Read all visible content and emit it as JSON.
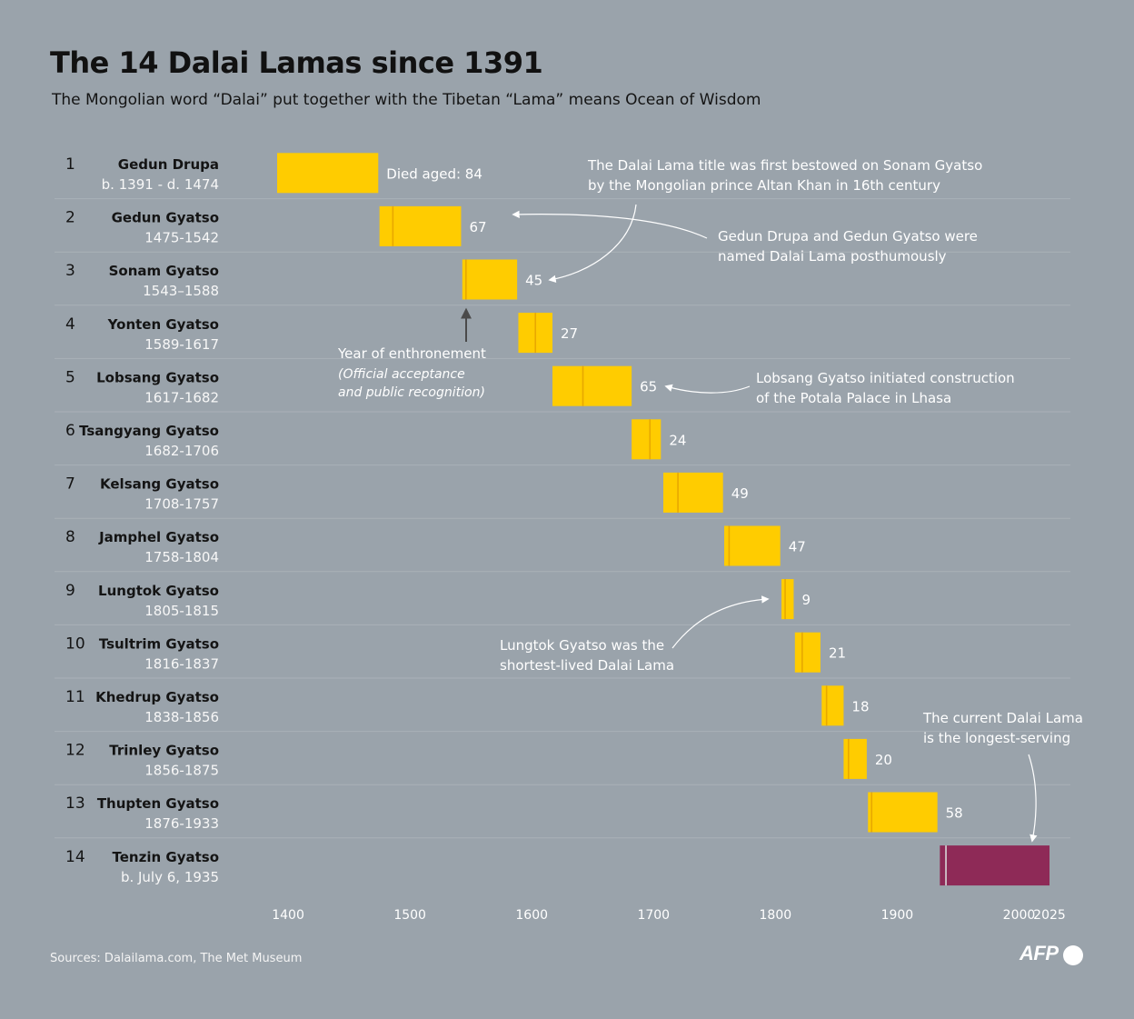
{
  "title": "The 14 Dalai Lamas since 1391",
  "subtitle": "The Mongolian word “Dalai” put together with the Tibetan “Lama” means Ocean of Wisdom",
  "sources": "Sources: Dalailama.com, The Met Museum",
  "logo": "AFP",
  "colors": {
    "background": "#9aa3ab",
    "bar": "#ffcc00",
    "current": "#8e2a57",
    "enthronement_line": "#e8a800"
  },
  "chart_data": {
    "type": "bar",
    "orientation": "horizontal-timeline",
    "title": "The 14 Dalai Lamas since 1391",
    "subtitle": "The Mongolian word “Dalai” put together with the Tibetan “Lama” means Ocean of Wisdom",
    "xlim": [
      1391,
      2025
    ],
    "x_ticks": [
      1400,
      1500,
      1600,
      1700,
      1800,
      1900,
      2000,
      2025
    ],
    "grid": "horizontal row separators",
    "rows": [
      {
        "num": "1",
        "name": "Gedun Drupa",
        "dates": "b. 1391 - d. 1474",
        "start": 1391,
        "end": 1474,
        "enthroned": null,
        "label": "Died aged: 84"
      },
      {
        "num": "2",
        "name": "Gedun Gyatso",
        "dates": "1475-1542",
        "start": 1475,
        "end": 1542,
        "enthroned": 1486,
        "label": "67"
      },
      {
        "num": "3",
        "name": "Sonam Gyatso",
        "dates": "1543–1588",
        "start": 1543,
        "end": 1588,
        "enthroned": 1546,
        "label": "45"
      },
      {
        "num": "4",
        "name": "Yonten Gyatso",
        "dates": "1589-1617",
        "start": 1589,
        "end": 1617,
        "enthroned": 1603,
        "label": "27"
      },
      {
        "num": "5",
        "name": "Lobsang Gyatso",
        "dates": "1617-1682",
        "start": 1617,
        "end": 1682,
        "enthroned": 1642,
        "label": "65"
      },
      {
        "num": "6",
        "name": "Tsangyang Gyatso",
        "dates": "1682-1706",
        "start": 1682,
        "end": 1706,
        "enthroned": 1697,
        "label": "24"
      },
      {
        "num": "7",
        "name": "Kelsang Gyatso",
        "dates": "1708-1757",
        "start": 1708,
        "end": 1757,
        "enthroned": 1720,
        "label": "49"
      },
      {
        "num": "8",
        "name": "Jamphel Gyatso",
        "dates": "1758-1804",
        "start": 1758,
        "end": 1804,
        "enthroned": 1762,
        "label": "47"
      },
      {
        "num": "9",
        "name": "Lungtok Gyatso",
        "dates": "1805-1815",
        "start": 1805,
        "end": 1815,
        "enthroned": 1808,
        "label": "9"
      },
      {
        "num": "10",
        "name": "Tsultrim Gyatso",
        "dates": "1816-1837",
        "start": 1816,
        "end": 1837,
        "enthroned": 1822,
        "label": "21"
      },
      {
        "num": "11",
        "name": "Khedrup Gyatso",
        "dates": "1838-1856",
        "start": 1838,
        "end": 1856,
        "enthroned": 1842,
        "label": "18"
      },
      {
        "num": "12",
        "name": "Trinley Gyatso",
        "dates": "1856-1875",
        "start": 1856,
        "end": 1875,
        "enthroned": 1860,
        "label": "20"
      },
      {
        "num": "13",
        "name": "Thupten Gyatso",
        "dates": "1876-1933",
        "start": 1876,
        "end": 1933,
        "enthroned": 1879,
        "label": "58"
      },
      {
        "num": "14",
        "name": "Tenzin Gyatso",
        "dates": "b. July 6, 1935",
        "start": 1935,
        "end": 2025,
        "enthroned": 1940,
        "label": "",
        "current": true
      }
    ],
    "annotations": {
      "title_bestowed": [
        "The Dalai Lama title was first bestowed on Sonam Gyatso",
        "by the Mongolian prince Altan Khan in 16th century"
      ],
      "posthumous": [
        "Gedun Drupa and Gedun Gyatso were",
        "named Dalai Lama posthumously"
      ],
      "enthronement": [
        "Year of enthronement"
      ],
      "enthronement_note": [
        "(Official acceptance",
        "and public recognition)"
      ],
      "potala": [
        "Lobsang Gyatso initiated construction",
        "of the Potala Palace in Lhasa"
      ],
      "shortest": [
        "Lungtok Gyatso was the",
        "shortest-lived Dalai Lama"
      ],
      "longest": [
        "The current Dalai Lama",
        "is the longest-serving"
      ]
    }
  }
}
